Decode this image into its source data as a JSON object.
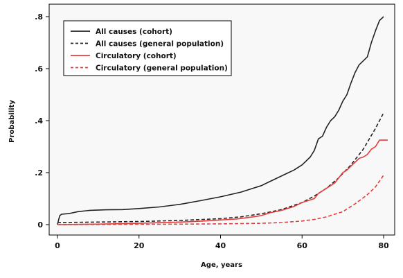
{
  "chart_data": {
    "type": "line",
    "title": "",
    "xlabel": "Age, years",
    "ylabel": "Probability",
    "xlim": [
      -2,
      82
    ],
    "ylim": [
      -0.02,
      0.82
    ],
    "xticks": [
      0,
      20,
      40,
      60,
      80
    ],
    "xtick_labels": [
      "0",
      "20",
      "40",
      "60",
      "80"
    ],
    "yticks": [
      0,
      0.2,
      0.4,
      0.6,
      0.8
    ],
    "ytick_labels": [
      "0",
      ".2",
      ".4",
      ".6",
      ".8"
    ],
    "grid": false,
    "legend_position": "top-left",
    "series": [
      {
        "name": "All causes (cohort)",
        "color": "#222222",
        "dash": "solid",
        "points": [
          [
            0,
            0.0
          ],
          [
            0.3,
            0.02
          ],
          [
            0.6,
            0.035
          ],
          [
            1,
            0.04
          ],
          [
            3,
            0.043
          ],
          [
            5,
            0.05
          ],
          [
            8,
            0.055
          ],
          [
            12,
            0.057
          ],
          [
            16,
            0.058
          ],
          [
            20,
            0.062
          ],
          [
            25,
            0.068
          ],
          [
            30,
            0.078
          ],
          [
            35,
            0.092
          ],
          [
            40,
            0.107
          ],
          [
            45,
            0.125
          ],
          [
            48,
            0.14
          ],
          [
            50,
            0.15
          ],
          [
            52,
            0.165
          ],
          [
            54,
            0.18
          ],
          [
            56,
            0.195
          ],
          [
            58,
            0.21
          ],
          [
            60,
            0.23
          ],
          [
            62,
            0.26
          ],
          [
            63,
            0.285
          ],
          [
            64,
            0.33
          ],
          [
            65,
            0.34
          ],
          [
            66,
            0.375
          ],
          [
            67,
            0.4
          ],
          [
            68,
            0.415
          ],
          [
            69,
            0.44
          ],
          [
            70,
            0.475
          ],
          [
            71,
            0.5
          ],
          [
            72,
            0.545
          ],
          [
            73,
            0.585
          ],
          [
            74,
            0.615
          ],
          [
            75,
            0.63
          ],
          [
            76,
            0.645
          ],
          [
            77,
            0.7
          ],
          [
            78,
            0.745
          ],
          [
            79,
            0.785
          ],
          [
            80,
            0.8
          ]
        ]
      },
      {
        "name": "All causes (general population)",
        "color": "#222222",
        "dash": "5,3",
        "points": [
          [
            0,
            0.008
          ],
          [
            10,
            0.01
          ],
          [
            20,
            0.012
          ],
          [
            30,
            0.016
          ],
          [
            40,
            0.023
          ],
          [
            45,
            0.03
          ],
          [
            50,
            0.042
          ],
          [
            55,
            0.058
          ],
          [
            60,
            0.085
          ],
          [
            63,
            0.11
          ],
          [
            66,
            0.14
          ],
          [
            69,
            0.18
          ],
          [
            72,
            0.23
          ],
          [
            75,
            0.29
          ],
          [
            78,
            0.37
          ],
          [
            80,
            0.43
          ]
        ]
      },
      {
        "name": "Circulatory (cohort)",
        "color": "#e83a3a",
        "dash": "solid",
        "points": [
          [
            0,
            0.0
          ],
          [
            10,
            0.002
          ],
          [
            20,
            0.005
          ],
          [
            30,
            0.01
          ],
          [
            35,
            0.013
          ],
          [
            40,
            0.018
          ],
          [
            44,
            0.022
          ],
          [
            48,
            0.03
          ],
          [
            50,
            0.035
          ],
          [
            52,
            0.045
          ],
          [
            55,
            0.055
          ],
          [
            58,
            0.07
          ],
          [
            60,
            0.085
          ],
          [
            62,
            0.095
          ],
          [
            63,
            0.1
          ],
          [
            64,
            0.12
          ],
          [
            65,
            0.13
          ],
          [
            66,
            0.14
          ],
          [
            67,
            0.15
          ],
          [
            68,
            0.16
          ],
          [
            69,
            0.18
          ],
          [
            70,
            0.2
          ],
          [
            71,
            0.21
          ],
          [
            72,
            0.225
          ],
          [
            73,
            0.24
          ],
          [
            74,
            0.255
          ],
          [
            75,
            0.26
          ],
          [
            76,
            0.27
          ],
          [
            77,
            0.29
          ],
          [
            78,
            0.3
          ],
          [
            79,
            0.325
          ],
          [
            80,
            0.325
          ],
          [
            81,
            0.325
          ]
        ]
      },
      {
        "name": "Circulatory (general population)",
        "color": "#e83a3a",
        "dash": "5,3",
        "points": [
          [
            0,
            0.0
          ],
          [
            20,
            0.001
          ],
          [
            30,
            0.002
          ],
          [
            40,
            0.003
          ],
          [
            45,
            0.004
          ],
          [
            50,
            0.005
          ],
          [
            55,
            0.008
          ],
          [
            60,
            0.014
          ],
          [
            63,
            0.02
          ],
          [
            66,
            0.03
          ],
          [
            70,
            0.05
          ],
          [
            73,
            0.08
          ],
          [
            76,
            0.115
          ],
          [
            78,
            0.145
          ],
          [
            80,
            0.19
          ]
        ]
      }
    ]
  }
}
